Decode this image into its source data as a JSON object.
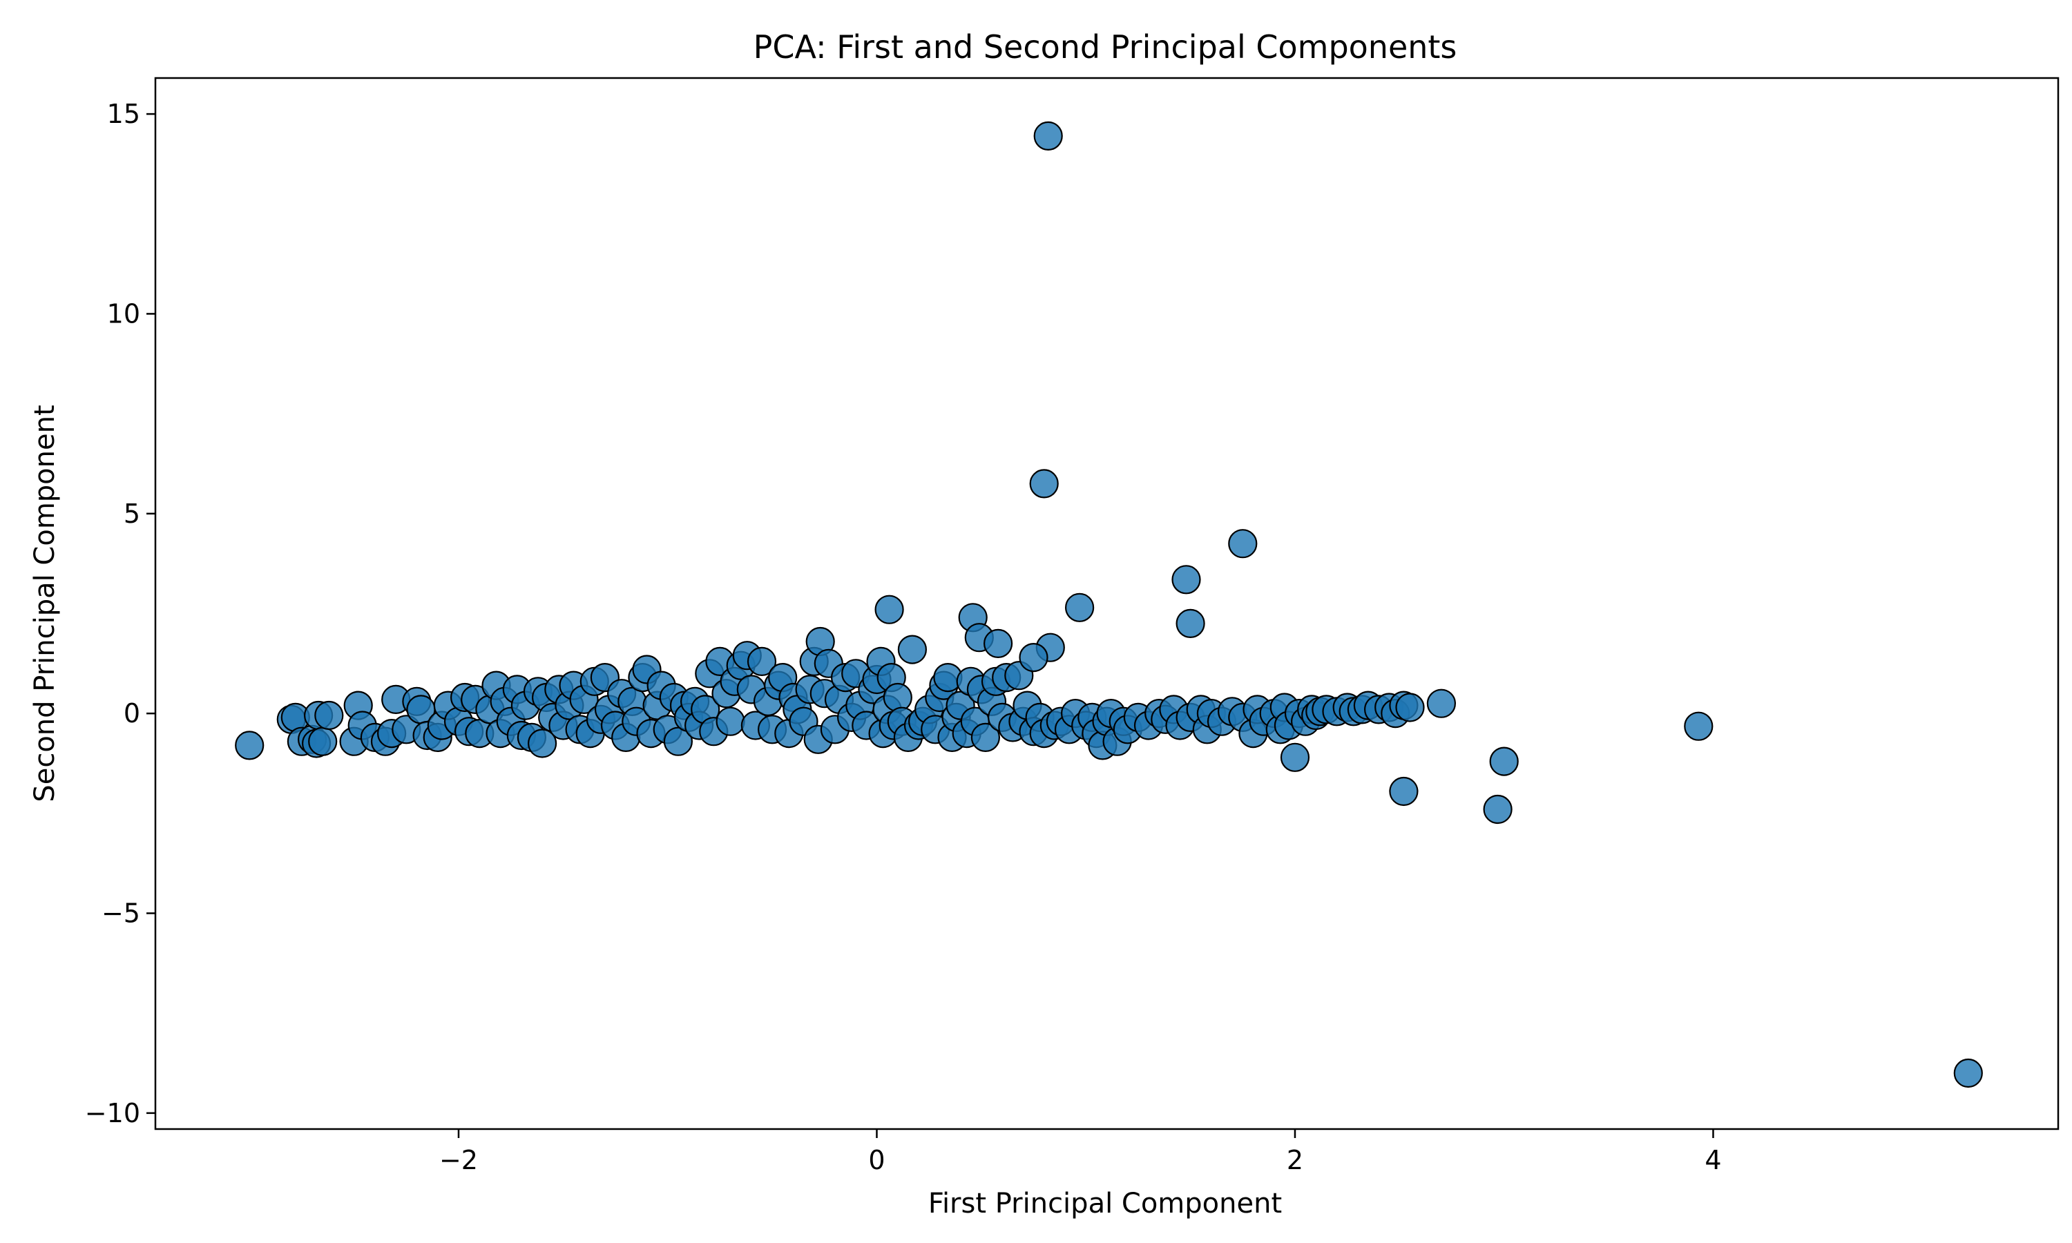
{
  "chart_data": {
    "type": "scatter",
    "title": "PCA: First and Second Principal Components",
    "xlabel": "First Principal Component",
    "ylabel": "Second Principal Component",
    "xlim": [
      -3.45,
      5.65
    ],
    "ylim": [
      -10.4,
      15.9
    ],
    "xticks": [
      -2,
      0,
      2,
      4
    ],
    "yticks": [
      -10,
      -5,
      0,
      5,
      10,
      15
    ],
    "xtick_labels": [
      "−2",
      "0",
      "2",
      "4"
    ],
    "ytick_labels": [
      "−10",
      "−5",
      "0",
      "5",
      "10",
      "15"
    ],
    "grid": false,
    "legend": "none",
    "marker_color": "#1f77b4",
    "marker_edge_color": "#000000",
    "marker_alpha": 0.8,
    "series": [
      {
        "points": [
          [
            -3.0,
            -0.8
          ],
          [
            -2.8,
            -0.15
          ],
          [
            -2.78,
            -0.1
          ],
          [
            -2.75,
            -0.7
          ],
          [
            -2.7,
            -0.65
          ],
          [
            -2.68,
            -0.75
          ],
          [
            -2.67,
            -0.05
          ],
          [
            -2.65,
            -0.7
          ],
          [
            -2.62,
            -0.05
          ],
          [
            -2.5,
            -0.7
          ],
          [
            -2.48,
            0.2
          ],
          [
            -2.46,
            -0.3
          ],
          [
            -2.4,
            -0.6
          ],
          [
            -2.35,
            -0.7
          ],
          [
            -2.32,
            -0.5
          ],
          [
            -2.3,
            0.35
          ],
          [
            -2.25,
            -0.4
          ],
          [
            -2.2,
            0.3
          ],
          [
            -2.18,
            0.1
          ],
          [
            -2.15,
            -0.55
          ],
          [
            -2.1,
            -0.6
          ],
          [
            -2.08,
            -0.3
          ],
          [
            -2.05,
            0.2
          ],
          [
            -2.0,
            -0.2
          ],
          [
            -1.97,
            0.4
          ],
          [
            -1.95,
            -0.45
          ],
          [
            -1.92,
            0.35
          ],
          [
            -1.9,
            -0.5
          ],
          [
            -1.85,
            0.1
          ],
          [
            -1.82,
            0.7
          ],
          [
            -1.8,
            -0.5
          ],
          [
            -1.78,
            0.3
          ],
          [
            -1.75,
            -0.2
          ],
          [
            -1.72,
            0.6
          ],
          [
            -1.7,
            -0.55
          ],
          [
            -1.68,
            0.2
          ],
          [
            -1.65,
            -0.6
          ],
          [
            -1.62,
            0.55
          ],
          [
            -1.6,
            -0.75
          ],
          [
            -1.58,
            0.4
          ],
          [
            -1.55,
            -0.1
          ],
          [
            -1.52,
            0.6
          ],
          [
            -1.5,
            -0.3
          ],
          [
            -1.47,
            0.2
          ],
          [
            -1.45,
            0.7
          ],
          [
            -1.42,
            -0.4
          ],
          [
            -1.4,
            0.35
          ],
          [
            -1.37,
            -0.5
          ],
          [
            -1.35,
            0.8
          ],
          [
            -1.32,
            -0.15
          ],
          [
            -1.3,
            0.9
          ],
          [
            -1.28,
            0.1
          ],
          [
            -1.25,
            -0.3
          ],
          [
            -1.22,
            0.5
          ],
          [
            -1.2,
            -0.6
          ],
          [
            -1.17,
            0.3
          ],
          [
            -1.15,
            -0.2
          ],
          [
            -1.12,
            0.9
          ],
          [
            -1.1,
            1.1
          ],
          [
            -1.08,
            -0.5
          ],
          [
            -1.05,
            0.2
          ],
          [
            -1.03,
            0.7
          ],
          [
            -1.0,
            -0.4
          ],
          [
            -0.97,
            0.4
          ],
          [
            -0.95,
            -0.7
          ],
          [
            -0.92,
            0.2
          ],
          [
            -0.9,
            -0.1
          ],
          [
            -0.87,
            0.3
          ],
          [
            -0.85,
            -0.3
          ],
          [
            -0.82,
            0.1
          ],
          [
            -0.8,
            1.0
          ],
          [
            -0.78,
            -0.45
          ],
          [
            -0.75,
            1.3
          ],
          [
            -0.72,
            0.5
          ],
          [
            -0.7,
            -0.2
          ],
          [
            -0.68,
            0.8
          ],
          [
            -0.65,
            1.2
          ],
          [
            -0.62,
            1.45
          ],
          [
            -0.6,
            0.6
          ],
          [
            -0.58,
            -0.3
          ],
          [
            -0.55,
            1.3
          ],
          [
            -0.52,
            0.3
          ],
          [
            -0.5,
            -0.4
          ],
          [
            -0.47,
            0.7
          ],
          [
            -0.45,
            0.9
          ],
          [
            -0.42,
            -0.5
          ],
          [
            -0.4,
            0.4
          ],
          [
            -0.38,
            0.1
          ],
          [
            -0.35,
            -0.2
          ],
          [
            -0.32,
            0.6
          ],
          [
            -0.3,
            1.3
          ],
          [
            -0.28,
            -0.65
          ],
          [
            -0.27,
            1.8
          ],
          [
            -0.25,
            0.5
          ],
          [
            -0.23,
            1.25
          ],
          [
            -0.2,
            -0.4
          ],
          [
            -0.18,
            0.35
          ],
          [
            -0.15,
            0.9
          ],
          [
            -0.12,
            -0.1
          ],
          [
            -0.1,
            1.0
          ],
          [
            -0.08,
            0.2
          ],
          [
            -0.05,
            -0.3
          ],
          [
            -0.02,
            0.6
          ],
          [
            0.0,
            0.85
          ],
          [
            0.02,
            1.3
          ],
          [
            0.03,
            -0.5
          ],
          [
            0.05,
            0.1
          ],
          [
            0.07,
            0.9
          ],
          [
            0.08,
            -0.3
          ],
          [
            0.1,
            0.4
          ],
          [
            0.12,
            -0.2
          ],
          [
            0.15,
            -0.6
          ],
          [
            0.17,
            1.6
          ],
          [
            0.2,
            -0.3
          ],
          [
            0.22,
            -0.2
          ],
          [
            0.25,
            0.1
          ],
          [
            0.28,
            -0.4
          ],
          [
            0.3,
            0.4
          ],
          [
            0.32,
            0.7
          ],
          [
            0.34,
            0.9
          ],
          [
            0.36,
            -0.6
          ],
          [
            0.38,
            -0.1
          ],
          [
            0.4,
            0.2
          ],
          [
            0.43,
            -0.5
          ],
          [
            0.45,
            0.8
          ],
          [
            0.47,
            -0.2
          ],
          [
            0.5,
            0.6
          ],
          [
            0.52,
            -0.6
          ],
          [
            0.55,
            0.3
          ],
          [
            0.57,
            0.8
          ],
          [
            0.6,
            -0.1
          ],
          [
            0.62,
            0.9
          ],
          [
            0.65,
            -0.35
          ],
          [
            0.68,
            0.95
          ],
          [
            0.7,
            -0.2
          ],
          [
            0.72,
            0.2
          ],
          [
            0.75,
            -0.45
          ],
          [
            0.78,
            -0.1
          ],
          [
            0.8,
            -0.5
          ],
          [
            0.85,
            -0.3
          ],
          [
            0.88,
            -0.2
          ],
          [
            0.92,
            -0.4
          ],
          [
            0.95,
            0.0
          ],
          [
            1.0,
            -0.3
          ],
          [
            1.03,
            -0.1
          ],
          [
            1.05,
            -0.5
          ],
          [
            1.08,
            -0.8
          ],
          [
            1.1,
            -0.2
          ],
          [
            1.12,
            0.0
          ],
          [
            1.15,
            -0.7
          ],
          [
            1.18,
            -0.2
          ],
          [
            1.2,
            -0.4
          ],
          [
            1.25,
            -0.1
          ],
          [
            1.3,
            -0.3
          ],
          [
            1.35,
            0.0
          ],
          [
            1.38,
            -0.15
          ],
          [
            1.42,
            0.1
          ],
          [
            1.45,
            -0.3
          ],
          [
            1.5,
            -0.1
          ],
          [
            1.55,
            0.1
          ],
          [
            1.58,
            -0.4
          ],
          [
            1.6,
            0.0
          ],
          [
            1.65,
            -0.2
          ],
          [
            1.7,
            0.05
          ],
          [
            1.75,
            -0.1
          ],
          [
            1.8,
            -0.5
          ],
          [
            1.82,
            0.1
          ],
          [
            1.85,
            -0.2
          ],
          [
            1.9,
            0.0
          ],
          [
            1.93,
            -0.4
          ],
          [
            1.95,
            0.15
          ],
          [
            1.97,
            -0.3
          ],
          [
            2.0,
            -1.1
          ],
          [
            2.02,
            0.0
          ],
          [
            2.05,
            -0.2
          ],
          [
            2.08,
            0.1
          ],
          [
            2.1,
            -0.05
          ],
          [
            2.12,
            0.05
          ],
          [
            2.15,
            0.1
          ],
          [
            2.2,
            0.05
          ],
          [
            2.25,
            0.15
          ],
          [
            2.28,
            0.05
          ],
          [
            2.32,
            0.1
          ],
          [
            2.35,
            0.2
          ],
          [
            2.4,
            0.1
          ],
          [
            2.45,
            0.15
          ],
          [
            2.48,
            0.0
          ],
          [
            2.52,
            0.2
          ],
          [
            2.55,
            0.15
          ],
          [
            2.7,
            0.25
          ],
          [
            2.52,
            -1.95
          ],
          [
            2.97,
            -2.4
          ],
          [
            3.0,
            -1.2
          ],
          [
            3.93,
            -0.32
          ],
          [
            5.22,
            -9.0
          ],
          [
            0.82,
            14.45
          ],
          [
            0.8,
            5.75
          ],
          [
            1.75,
            4.25
          ],
          [
            1.48,
            3.35
          ],
          [
            1.5,
            2.25
          ],
          [
            0.97,
            2.65
          ],
          [
            0.06,
            2.6
          ],
          [
            0.46,
            2.4
          ],
          [
            0.49,
            1.9
          ],
          [
            0.58,
            1.75
          ],
          [
            0.83,
            1.65
          ],
          [
            0.75,
            1.4
          ]
        ]
      }
    ]
  }
}
